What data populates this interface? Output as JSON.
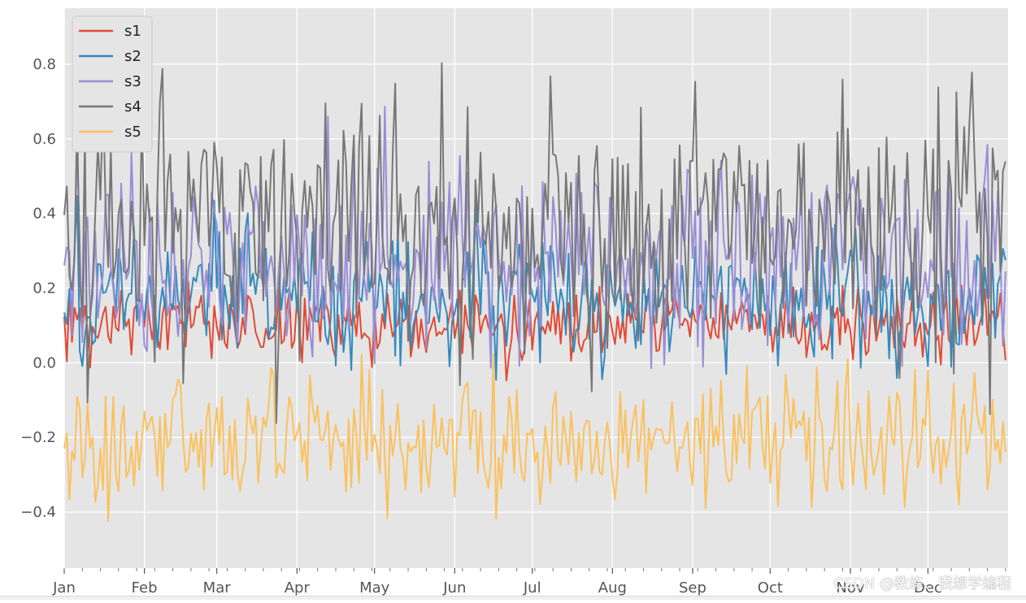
{
  "chart_data": {
    "type": "line",
    "title": "",
    "xlabel": "",
    "ylabel": "",
    "x_tick_labels": [
      "Jan",
      "Feb",
      "Mar",
      "Apr",
      "May",
      "Jun",
      "Jul",
      "Aug",
      "Sep",
      "Oct",
      "Nov",
      "Dec"
    ],
    "y_ticks": [
      -0.4,
      -0.2,
      0.0,
      0.2,
      0.4,
      0.6,
      0.8
    ],
    "y_tick_labels": [
      "−0.4",
      "−0.2",
      "0.0",
      "0.2",
      "0.4",
      "0.6",
      "0.8"
    ],
    "xlim": [
      "Jan 1",
      "Dec 31"
    ],
    "ylim": [
      -0.55,
      0.95
    ],
    "grid": true,
    "legend_position": "top-left",
    "series": [
      {
        "name": "s1",
        "color": "#e24a33",
        "mean": 0.1,
        "spread": 0.05,
        "min": -0.05,
        "max": 0.22
      },
      {
        "name": "s2",
        "color": "#348abd",
        "mean": 0.18,
        "spread": 0.09,
        "min": -0.1,
        "max": 0.45
      },
      {
        "name": "s3",
        "color": "#988ed5",
        "mean": 0.28,
        "spread": 0.14,
        "min": -0.02,
        "max": 0.72
      },
      {
        "name": "s4",
        "color": "#777777",
        "mean": 0.36,
        "spread": 0.18,
        "min": -0.17,
        "max": 0.9
      },
      {
        "name": "s5",
        "color": "#fbc15e",
        "mean": -0.21,
        "spread": 0.09,
        "min": -0.49,
        "max": 0.07
      }
    ]
  },
  "watermark": "CSDN @教练、我想学编程"
}
